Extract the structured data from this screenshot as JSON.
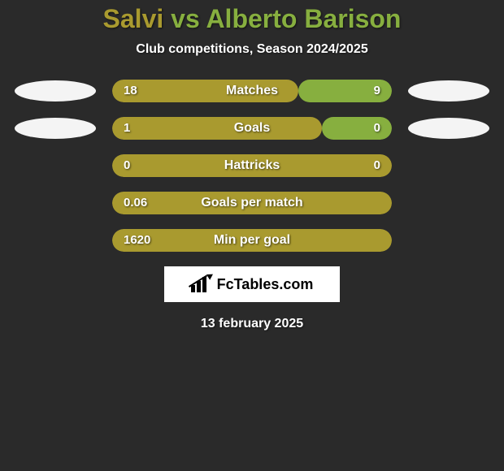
{
  "colors": {
    "player1": "#a99a2f",
    "player2": "#87af3f",
    "badge_left": "#f4f4f4",
    "badge_right": "#f4f4f4",
    "background": "#2a2a2a"
  },
  "header": {
    "player1_name": "Salvi",
    "vs_text": "vs",
    "player2_name": "Alberto Barison",
    "subtitle": "Club competitions, Season 2024/2025"
  },
  "stats": [
    {
      "label": "Matches",
      "left_val": "18",
      "right_val": "9",
      "left_pct": 66.7,
      "right_pct": 33.3,
      "show_badges": true
    },
    {
      "label": "Goals",
      "left_val": "1",
      "right_val": "0",
      "left_pct": 75.0,
      "right_pct": 25.0,
      "show_badges": true
    },
    {
      "label": "Hattricks",
      "left_val": "0",
      "right_val": "0",
      "left_pct": 100.0,
      "right_pct": 0.0,
      "show_badges": false
    },
    {
      "label": "Goals per match",
      "left_val": "0.06",
      "right_val": "",
      "left_pct": 100.0,
      "right_pct": 0.0,
      "show_badges": false
    },
    {
      "label": "Min per goal",
      "left_val": "1620",
      "right_val": "",
      "left_pct": 100.0,
      "right_pct": 0.0,
      "show_badges": false
    }
  ],
  "footer": {
    "brand_text": "FcTables.com",
    "date": "13 february 2025"
  }
}
